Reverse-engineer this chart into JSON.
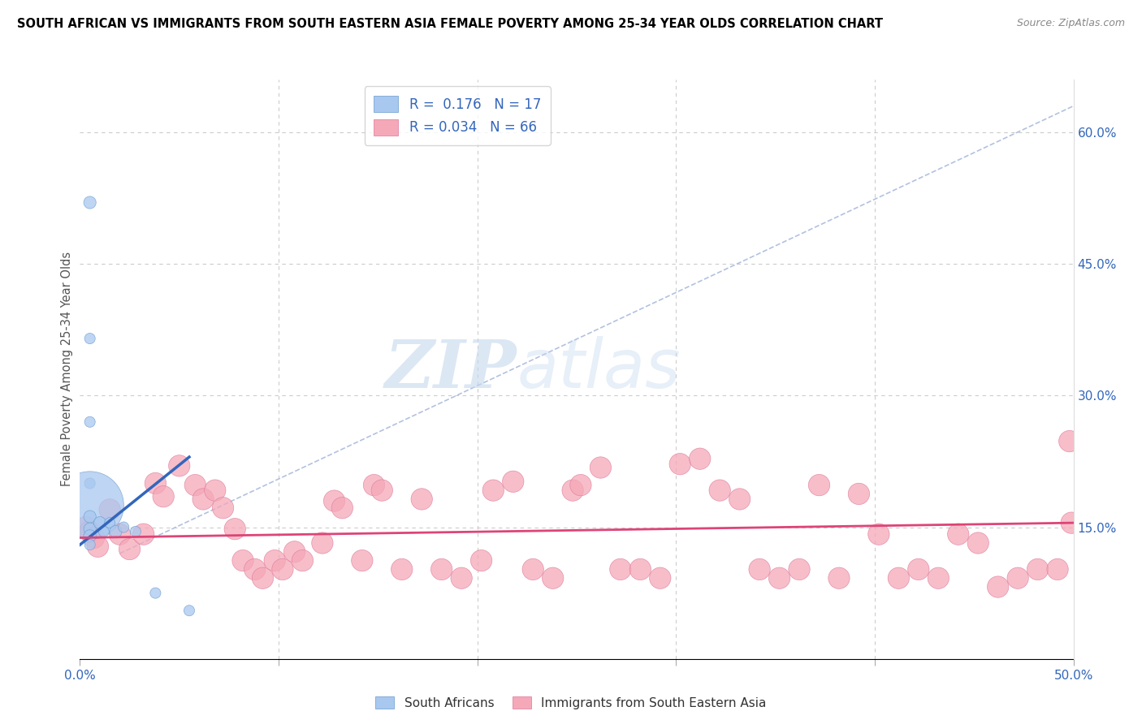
{
  "title": "SOUTH AFRICAN VS IMMIGRANTS FROM SOUTH EASTERN ASIA FEMALE POVERTY AMONG 25-34 YEAR OLDS CORRELATION CHART",
  "source": "Source: ZipAtlas.com",
  "ylabel": "Female Poverty Among 25-34 Year Olds",
  "xlim": [
    0.0,
    0.5
  ],
  "ylim": [
    0.0,
    0.66
  ],
  "xticks": [
    0.0,
    0.1,
    0.2,
    0.3,
    0.4,
    0.5
  ],
  "xtick_labels_ends": {
    "0.0": "0.0%",
    "0.5": "50.0%"
  },
  "yticks_right": [
    0.15,
    0.3,
    0.45,
    0.6
  ],
  "ytick_labels_right": [
    "15.0%",
    "30.0%",
    "45.0%",
    "60.0%"
  ],
  "blue_R": 0.176,
  "blue_N": 17,
  "pink_R": 0.034,
  "pink_N": 66,
  "background_color": "#ffffff",
  "grid_color": "#cccccc",
  "watermark_zip": "ZIP",
  "watermark_atlas": "atlas",
  "blue_color": "#a8c8f0",
  "blue_edge_color": "#6699cc",
  "blue_line_color": "#3366bb",
  "pink_color": "#f5a8b8",
  "pink_edge_color": "#dd7799",
  "pink_line_color": "#dd4477",
  "diag_color": "#aabbdd",
  "blue_scatter_x": [
    0.005,
    0.005,
    0.005,
    0.005,
    0.005,
    0.005,
    0.005,
    0.005,
    0.005,
    0.01,
    0.012,
    0.015,
    0.018,
    0.022,
    0.028,
    0.038,
    0.055
  ],
  "blue_scatter_y": [
    0.52,
    0.365,
    0.27,
    0.2,
    0.175,
    0.162,
    0.148,
    0.14,
    0.13,
    0.155,
    0.145,
    0.155,
    0.145,
    0.15,
    0.145,
    0.075,
    0.055
  ],
  "blue_scatter_size": [
    20,
    15,
    15,
    15,
    600,
    20,
    20,
    20,
    15,
    20,
    15,
    15,
    20,
    15,
    15,
    15,
    15
  ],
  "pink_scatter_x": [
    0.003,
    0.005,
    0.007,
    0.009,
    0.015,
    0.02,
    0.025,
    0.032,
    0.038,
    0.042,
    0.05,
    0.058,
    0.062,
    0.068,
    0.072,
    0.078,
    0.082,
    0.088,
    0.092,
    0.098,
    0.102,
    0.108,
    0.112,
    0.122,
    0.128,
    0.132,
    0.142,
    0.148,
    0.152,
    0.162,
    0.172,
    0.182,
    0.192,
    0.202,
    0.208,
    0.218,
    0.228,
    0.238,
    0.248,
    0.252,
    0.262,
    0.272,
    0.282,
    0.292,
    0.302,
    0.312,
    0.322,
    0.332,
    0.342,
    0.352,
    0.362,
    0.372,
    0.382,
    0.392,
    0.402,
    0.412,
    0.422,
    0.432,
    0.442,
    0.452,
    0.462,
    0.472,
    0.482,
    0.492,
    0.498,
    0.499
  ],
  "pink_scatter_y": [
    0.15,
    0.145,
    0.138,
    0.128,
    0.17,
    0.142,
    0.125,
    0.142,
    0.2,
    0.185,
    0.22,
    0.198,
    0.182,
    0.192,
    0.172,
    0.148,
    0.112,
    0.102,
    0.092,
    0.112,
    0.102,
    0.122,
    0.112,
    0.132,
    0.18,
    0.172,
    0.112,
    0.198,
    0.192,
    0.102,
    0.182,
    0.102,
    0.092,
    0.112,
    0.192,
    0.202,
    0.102,
    0.092,
    0.192,
    0.198,
    0.218,
    0.102,
    0.102,
    0.092,
    0.222,
    0.228,
    0.192,
    0.182,
    0.102,
    0.092,
    0.102,
    0.198,
    0.092,
    0.188,
    0.142,
    0.092,
    0.102,
    0.092,
    0.142,
    0.132,
    0.082,
    0.092,
    0.102,
    0.102,
    0.248,
    0.155
  ],
  "pink_scatter_size": [
    60,
    60,
    60,
    60,
    60,
    60,
    60,
    60,
    60,
    60,
    60,
    60,
    60,
    60,
    60,
    60,
    60,
    60,
    60,
    60,
    60,
    60,
    60,
    60,
    60,
    60,
    60,
    60,
    60,
    60,
    60,
    60,
    60,
    60,
    60,
    60,
    60,
    60,
    60,
    60,
    60,
    60,
    60,
    60,
    60,
    60,
    60,
    60,
    60,
    60,
    60,
    60,
    60,
    60,
    60,
    60,
    60,
    60,
    60,
    60,
    60,
    60,
    60,
    60,
    60,
    60
  ],
  "blue_trend_x": [
    0.0,
    0.055
  ],
  "blue_trend_y": [
    0.13,
    0.23
  ],
  "pink_trend_x": [
    0.0,
    0.5
  ],
  "pink_trend_y": [
    0.138,
    0.155
  ]
}
